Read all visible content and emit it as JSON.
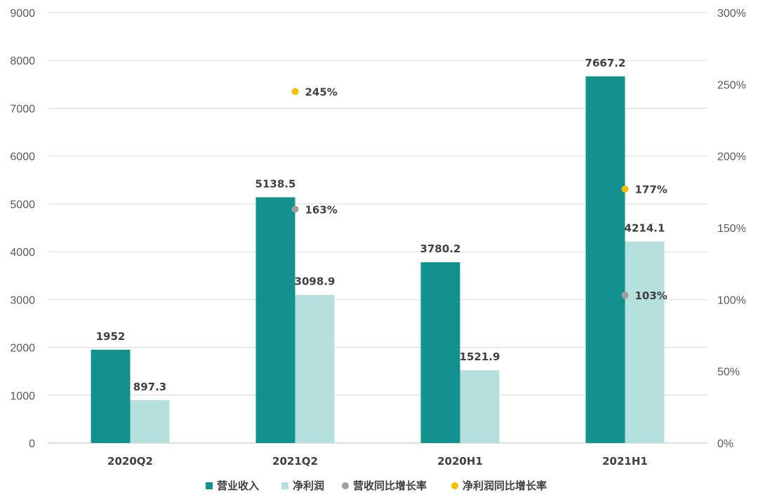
{
  "chart_data": {
    "type": "bar",
    "categories": [
      "2020Q2",
      "2021Q2",
      "2020H1",
      "2021H1"
    ],
    "series": [
      {
        "name": "营业收入",
        "kind": "bar",
        "axis": "left",
        "color": "#13918f",
        "values": [
          1952,
          5138.5,
          3780.2,
          7667.2
        ],
        "labels": [
          "1952",
          "5138.5",
          "3780.2",
          "7667.2"
        ]
      },
      {
        "name": "净利润",
        "kind": "bar",
        "axis": "left",
        "color": "#b5e0de",
        "values": [
          897.3,
          3098.9,
          1521.9,
          4214.1
        ],
        "labels": [
          "897.3",
          "3098.9",
          "1521.9",
          "4214.1"
        ]
      },
      {
        "name": "营收同比增长率",
        "kind": "point",
        "axis": "right",
        "color": "#9e9e9e",
        "values": [
          null,
          163,
          null,
          103
        ],
        "labels": [
          "",
          "163%",
          "",
          "103%"
        ]
      },
      {
        "name": "净利润同比增长率",
        "kind": "point",
        "axis": "right",
        "color": "#f6c000",
        "values": [
          null,
          245,
          null,
          177
        ],
        "labels": [
          "",
          "245%",
          "",
          "177%"
        ]
      }
    ],
    "left_axis": {
      "min": 0,
      "max": 9000,
      "ticks": [
        "0",
        "1000",
        "2000",
        "3000",
        "4000",
        "5000",
        "6000",
        "7000",
        "8000",
        "9000"
      ]
    },
    "right_axis": {
      "min": 0,
      "max": 300,
      "ticks": [
        "0%",
        "50%",
        "100%",
        "150%",
        "200%",
        "250%",
        "300%"
      ]
    },
    "grid": true,
    "legend_position": "bottom"
  }
}
